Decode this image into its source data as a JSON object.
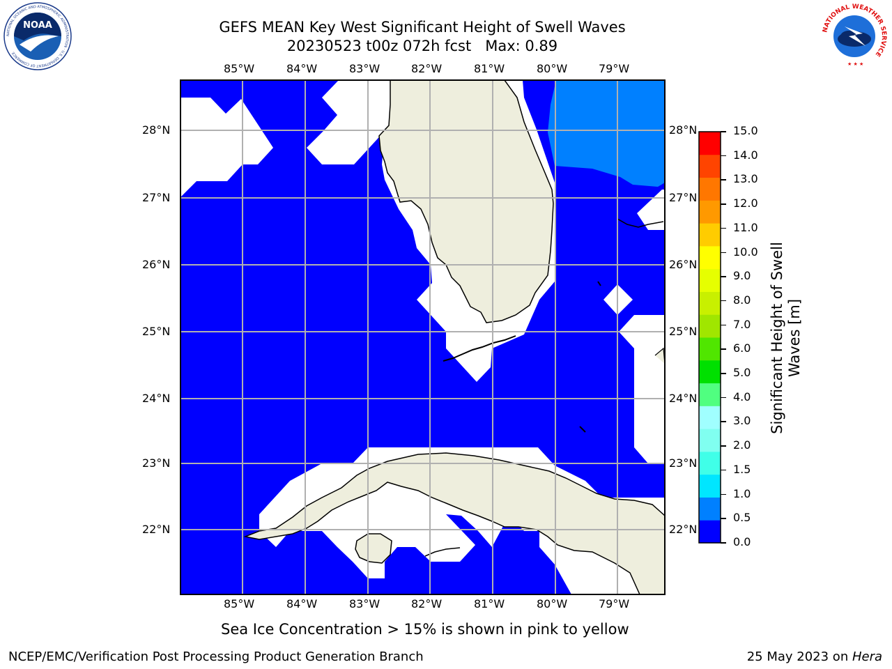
{
  "title": {
    "line1": "GEFS MEAN Key West Significant Height of Swell Waves",
    "line2": "20230523 t00z 072h fcst   Max: 0.89"
  },
  "map": {
    "lon_labels": [
      "85°W",
      "84°W",
      "83°W",
      "82°W",
      "81°W",
      "80°W",
      "79°W"
    ],
    "lat_labels": [
      "28°N",
      "27°N",
      "26°N",
      "25°N",
      "24°N",
      "23°N",
      "22°N"
    ],
    "lon_range": [
      -86,
      -78.3
    ],
    "lat_range": [
      21,
      28.8
    ],
    "colors": {
      "ocean": "#0000ff",
      "ocean_light": "#0080ff",
      "land": "#eeeedd",
      "grid": "#b0b0b0",
      "nodata": "#ffffff"
    }
  },
  "colorbar": {
    "label": "Significant Height of Swell Waves [m]",
    "ticks": [
      "0.0",
      "0.5",
      "1.0",
      "1.5",
      "2.0",
      "3.0",
      "4.0",
      "5.0",
      "6.0",
      "7.0",
      "8.0",
      "9.0",
      "10.0",
      "11.0",
      "12.0",
      "13.0",
      "14.0",
      "15.0"
    ],
    "colors": [
      "#0000ff",
      "#0080ff",
      "#00e6ff",
      "#40ffe8",
      "#80fff0",
      "#a0ffff",
      "#50ff80",
      "#00e000",
      "#50e600",
      "#a0e600",
      "#c8f000",
      "#e6ff00",
      "#ffff00",
      "#ffcc00",
      "#ff9900",
      "#ff7700",
      "#ff4400",
      "#ff0000"
    ]
  },
  "logos": {
    "noaa_text": "NOAA",
    "noaa_ring": "NATIONAL OCEANIC AND ATMOSPHERIC ADMINISTRATION · U.S. DEPARTMENT OF COMMERCE",
    "nws_ring": "NATIONAL WEATHER SERVICE"
  },
  "note": "Sea Ice Concentration > 15% is shown in pink to yellow",
  "footer": {
    "left": "NCEP/EMC/Verification Post Processing Product Generation Branch",
    "right_prefix": "25 May 2023 on ",
    "right_host": "Hera"
  }
}
